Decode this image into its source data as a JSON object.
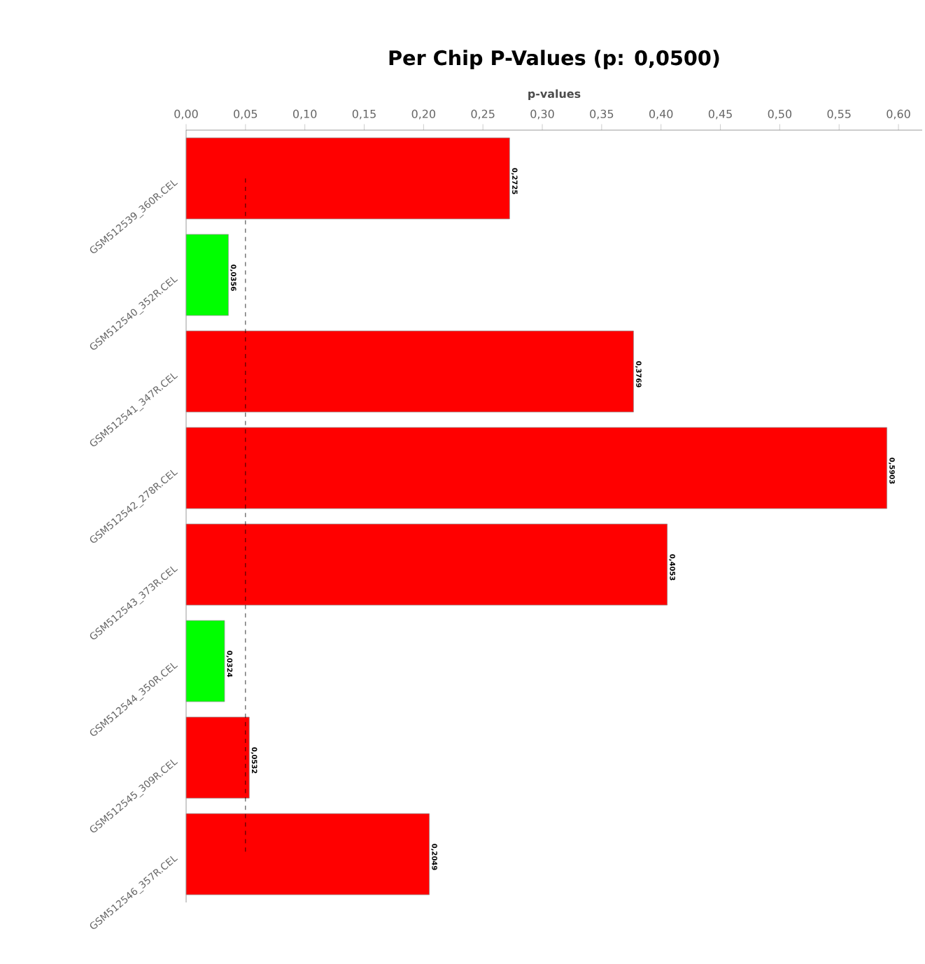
{
  "chart_data": {
    "type": "bar",
    "orientation": "horizontal",
    "title": "Per Chip P-Values (p: 0,0500)",
    "xlabel": "p-values",
    "categories": [
      "GSM512539_360R.CEL",
      "GSM512540_352R.CEL",
      "GSM512541_347R.CEL",
      "GSM512542_278R.CEL",
      "GSM512543_373R.CEL",
      "GSM512544_350R.CEL",
      "GSM512545_309R.CEL",
      "GSM512546_357R.CEL"
    ],
    "values": [
      0.2725,
      0.0356,
      0.3769,
      0.5903,
      0.4053,
      0.0324,
      0.0532,
      0.2049
    ],
    "value_labels": [
      "0,2725",
      "0,0356",
      "0,3769",
      "0,5903",
      "0,4053",
      "0,0324",
      "0,0532",
      "0,2049"
    ],
    "colors": [
      "#ff0000",
      "#00ff00",
      "#ff0000",
      "#ff0000",
      "#ff0000",
      "#00ff00",
      "#ff0000",
      "#ff0000"
    ],
    "xlim": [
      0,
      0.62
    ],
    "xticks": [
      {
        "value": 0,
        "label": "0,00"
      },
      {
        "value": 0.05,
        "label": "0,05"
      },
      {
        "value": 0.1,
        "label": "0,10"
      },
      {
        "value": 0.15,
        "label": "0,15"
      },
      {
        "value": 0.2,
        "label": "0,20"
      },
      {
        "value": 0.25,
        "label": "0,25"
      },
      {
        "value": 0.3,
        "label": "0,30"
      },
      {
        "value": 0.35,
        "label": "0,35"
      },
      {
        "value": 0.4,
        "label": "0,40"
      },
      {
        "value": 0.45,
        "label": "0,45"
      },
      {
        "value": 0.5,
        "label": "0,50"
      },
      {
        "value": 0.55,
        "label": "0,55"
      },
      {
        "value": 0.6,
        "label": "0,60"
      }
    ],
    "ref_lines": [
      {
        "axis": "x",
        "value": 0.05,
        "line_style": "dashed",
        "color": "#000000"
      }
    ]
  }
}
